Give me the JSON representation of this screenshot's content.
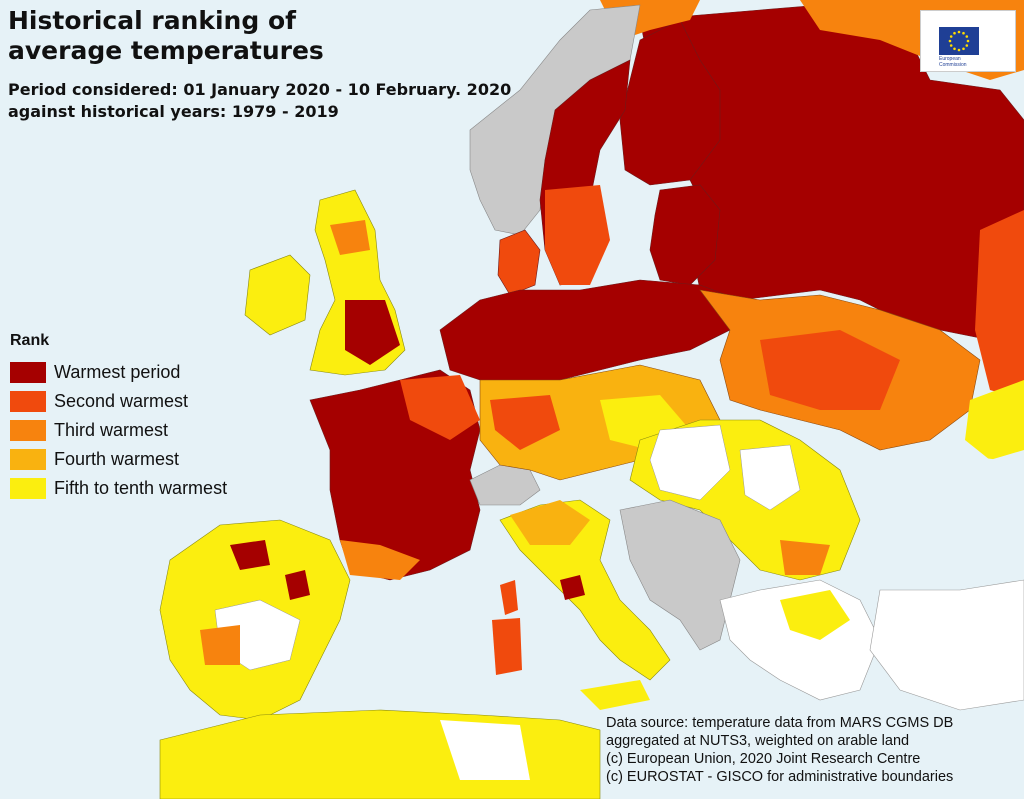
{
  "title_line1": "Historical ranking of",
  "title_line2": "average temperatures",
  "subtitle_line1": "Period considered: 01 January 2020 - 10 February. 2020",
  "subtitle_line2": "against historical years: 1979 - 2019",
  "legend": {
    "title": "Rank",
    "items": [
      {
        "label": "Warmest period",
        "color": "#a50000"
      },
      {
        "label": "Second warmest",
        "color": "#f04a0d"
      },
      {
        "label": "Third warmest",
        "color": "#f7830e"
      },
      {
        "label": "Fourth warmest",
        "color": "#f9b210"
      },
      {
        "label": "Fifth to tenth warmest",
        "color": "#fbee0f"
      }
    ]
  },
  "source": {
    "line1": "Data source: temperature data from MARS CGMS DB",
    "line2": " aggregated at NUTS3, weighted on arable land",
    "line3": "(c) European Union, 2020 Joint Research Centre",
    "line4": "(c) EUROSTAT - GISCO for administrative boundaries"
  },
  "logo": {
    "line1": "European",
    "line2": "Commission"
  },
  "colors": {
    "sea": "#e6f2f7",
    "no_data_land": "#ffffff",
    "excluded_land": "#c9c9c9"
  }
}
